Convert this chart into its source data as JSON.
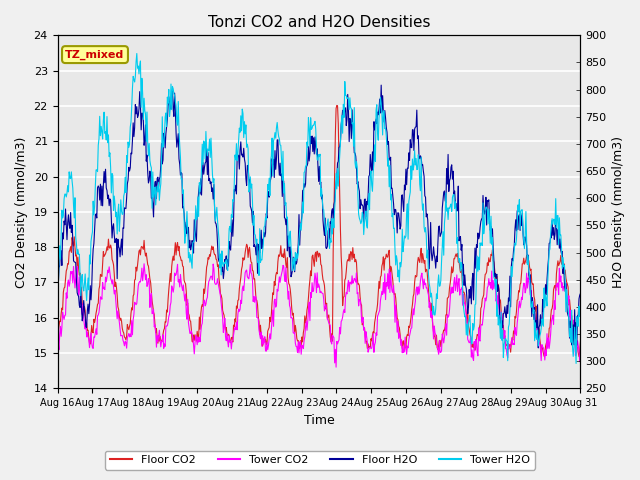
{
  "title": "Tonzi CO2 and H2O Densities",
  "xlabel": "Time",
  "ylabel_left": "CO2 Density (mmol/m3)",
  "ylabel_right": "H2O Density (mmol/m3)",
  "ylim_left": [
    14.0,
    24.0
  ],
  "ylim_right": [
    250,
    900
  ],
  "xtick_labels": [
    "Aug 16",
    "Aug 17",
    "Aug 18",
    "Aug 19",
    "Aug 20",
    "Aug 21",
    "Aug 22",
    "Aug 23",
    "Aug 24",
    "Aug 25",
    "Aug 26",
    "Aug 27",
    "Aug 28",
    "Aug 29",
    "Aug 30",
    "Aug 31"
  ],
  "annotation_text": "TZ_mixed",
  "annotation_color": "#cc0000",
  "annotation_bg": "#ffff99",
  "annotation_edge": "#999900",
  "colors": {
    "floor_co2": "#dd2222",
    "tower_co2": "#ff00ff",
    "floor_h2o": "#000099",
    "tower_h2o": "#00ccee"
  },
  "legend_labels": [
    "Floor CO2",
    "Tower CO2",
    "Floor H2O",
    "Tower H2O"
  ],
  "background_color": "#e8e8e8",
  "grid_color": "#ffffff",
  "n_days": 15,
  "points_per_day": 48
}
